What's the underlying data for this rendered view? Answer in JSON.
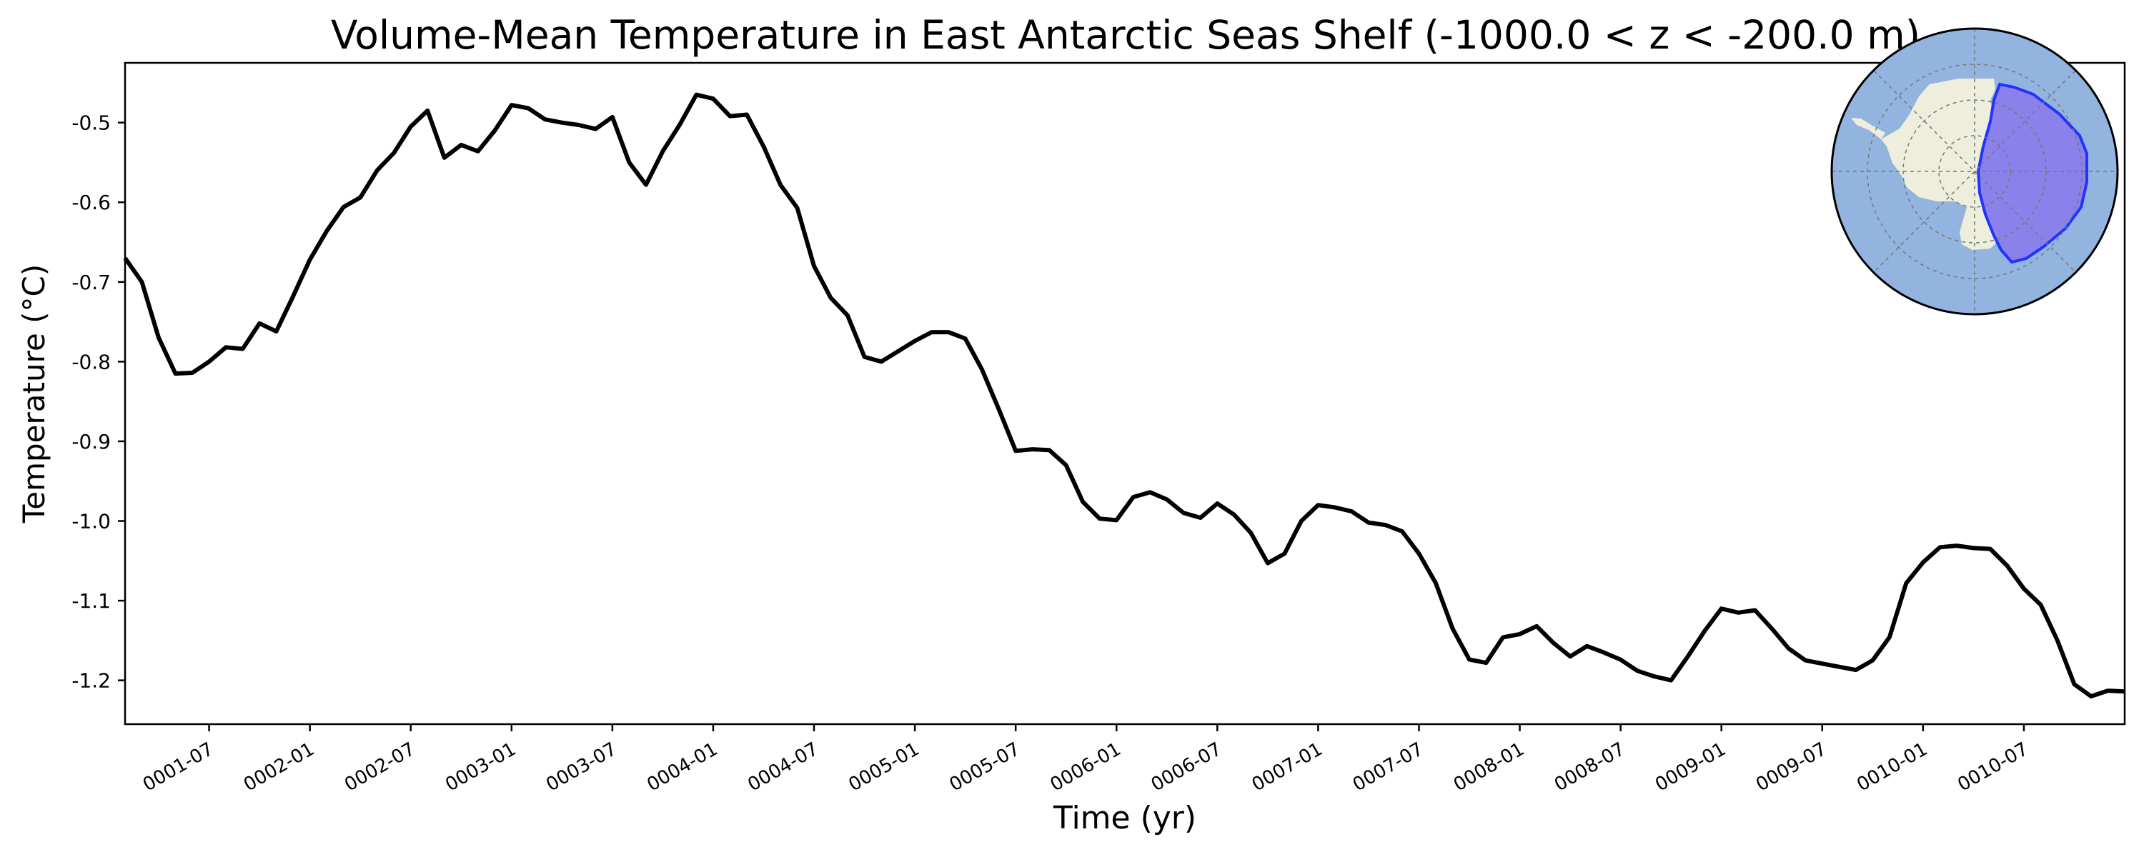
{
  "chart_data": {
    "type": "line",
    "title": "Volume-Mean Temperature in East Antarctic Seas Shelf (-1000.0 < z < -200.0 m)",
    "xlabel": "Time (yr)",
    "ylabel": "Temperature (°C)",
    "ylim": [
      -1.255,
      -0.425
    ],
    "xlim": [
      "0001-02-01",
      "0011-01-01"
    ],
    "x_ticks": [
      "0001-07",
      "0002-01",
      "0002-07",
      "0003-01",
      "0003-07",
      "0004-01",
      "0004-07",
      "0005-01",
      "0005-07",
      "0006-01",
      "0006-07",
      "0007-01",
      "0007-07",
      "0008-01",
      "0008-07",
      "0009-01",
      "0009-07",
      "0010-01",
      "0010-07"
    ],
    "y_ticks": [
      "-0.5",
      "-0.6",
      "-0.7",
      "-0.8",
      "-0.9",
      "-1.0",
      "-1.1",
      "-1.2"
    ],
    "y_tick_values": [
      -0.5,
      -0.6,
      -0.7,
      -0.8,
      -0.9,
      -1.0,
      -1.1,
      -1.2
    ],
    "grid": false,
    "line_color": "#000000",
    "series": [
      {
        "x": [
          "0001-02",
          "0001-03",
          "0001-04",
          "0001-05",
          "0001-06",
          "0001-07",
          "0001-08",
          "0001-09",
          "0001-10",
          "0001-11",
          "0001-12",
          "0002-01",
          "0002-02",
          "0002-03",
          "0002-04",
          "0002-05",
          "0002-06",
          "0002-07",
          "0002-08",
          "0002-09",
          "0002-10",
          "0002-11",
          "0002-12",
          "0003-01",
          "0003-02",
          "0003-03",
          "0003-04",
          "0003-05",
          "0003-06",
          "0003-07",
          "0003-08",
          "0003-09",
          "0003-10",
          "0003-11",
          "0003-12",
          "0004-01",
          "0004-02",
          "0004-03",
          "0004-04",
          "0004-05",
          "0004-06",
          "0004-07",
          "0004-08",
          "0004-09",
          "0004-10",
          "0004-11",
          "0004-12",
          "0005-01",
          "0005-02",
          "0005-03",
          "0005-04",
          "0005-05",
          "0005-06",
          "0005-07",
          "0005-08",
          "0005-09",
          "0005-10",
          "0005-11",
          "0005-12",
          "0006-01",
          "0006-02",
          "0006-03",
          "0006-04",
          "0006-05",
          "0006-06",
          "0006-07",
          "0006-08",
          "0006-09",
          "0006-10",
          "0006-11",
          "0006-12",
          "0007-01",
          "0007-02",
          "0007-03",
          "0007-04",
          "0007-05",
          "0007-06",
          "0007-07",
          "0007-08",
          "0007-09",
          "0007-10",
          "0007-11",
          "0007-12",
          "0008-01",
          "0008-02",
          "0008-03",
          "0008-04",
          "0008-05",
          "0008-06",
          "0008-07",
          "0008-08",
          "0008-09",
          "0008-10",
          "0008-11",
          "0008-12",
          "0009-01",
          "0009-02",
          "0009-03",
          "0009-04",
          "0009-05",
          "0009-06",
          "0009-07",
          "0009-08",
          "0009-09",
          "0009-10",
          "0009-11",
          "0009-12",
          "0010-01",
          "0010-02",
          "0010-03",
          "0010-04",
          "0010-05",
          "0010-06",
          "0010-07",
          "0010-08",
          "0010-09",
          "0010-10",
          "0010-11",
          "0010-12",
          "0011-01"
        ],
        "values": [
          -0.67,
          -0.7,
          -0.77,
          -0.815,
          -0.814,
          -0.8,
          -0.782,
          -0.784,
          -0.752,
          -0.762,
          -0.718,
          -0.672,
          -0.636,
          -0.606,
          -0.594,
          -0.56,
          -0.538,
          -0.505,
          -0.485,
          -0.544,
          -0.528,
          -0.536,
          -0.51,
          -0.478,
          -0.482,
          -0.496,
          -0.5,
          -0.503,
          -0.508,
          -0.493,
          -0.55,
          -0.578,
          -0.536,
          -0.503,
          -0.465,
          -0.47,
          -0.492,
          -0.49,
          -0.53,
          -0.578,
          -0.607,
          -0.68,
          -0.72,
          -0.742,
          -0.794,
          -0.8,
          -0.787,
          -0.774,
          -0.763,
          -0.763,
          -0.771,
          -0.81,
          -0.86,
          -0.912,
          -0.91,
          -0.911,
          -0.93,
          -0.976,
          -0.997,
          -0.999,
          -0.97,
          -0.964,
          -0.973,
          -0.99,
          -0.996,
          -0.978,
          -0.992,
          -1.015,
          -1.053,
          -1.041,
          -1.0,
          -0.98,
          -0.983,
          -0.988,
          -1.002,
          -1.005,
          -1.013,
          -1.041,
          -1.078,
          -1.135,
          -1.174,
          -1.178,
          -1.146,
          -1.142,
          -1.132,
          -1.153,
          -1.17,
          -1.157,
          -1.165,
          -1.174,
          -1.188,
          -1.195,
          -1.2,
          -1.17,
          -1.138,
          -1.11,
          -1.115,
          -1.112,
          -1.135,
          -1.16,
          -1.175,
          -1.179,
          -1.183,
          -1.187,
          -1.175,
          -1.146,
          -1.078,
          -1.052,
          -1.033,
          -1.031,
          -1.034,
          -1.035,
          -1.056,
          -1.085,
          -1.105,
          -1.15,
          -1.205,
          -1.22,
          -1.213,
          -1.214
        ]
      }
    ]
  },
  "inset_map": {
    "ocean_color": "#94b4e0",
    "land_color": "#eeeedc",
    "region_color": "#8a82ea",
    "region_edge_color": "#2233ff",
    "description": "Polar stereographic inset map highlighting East Antarctic shelf seas"
  }
}
